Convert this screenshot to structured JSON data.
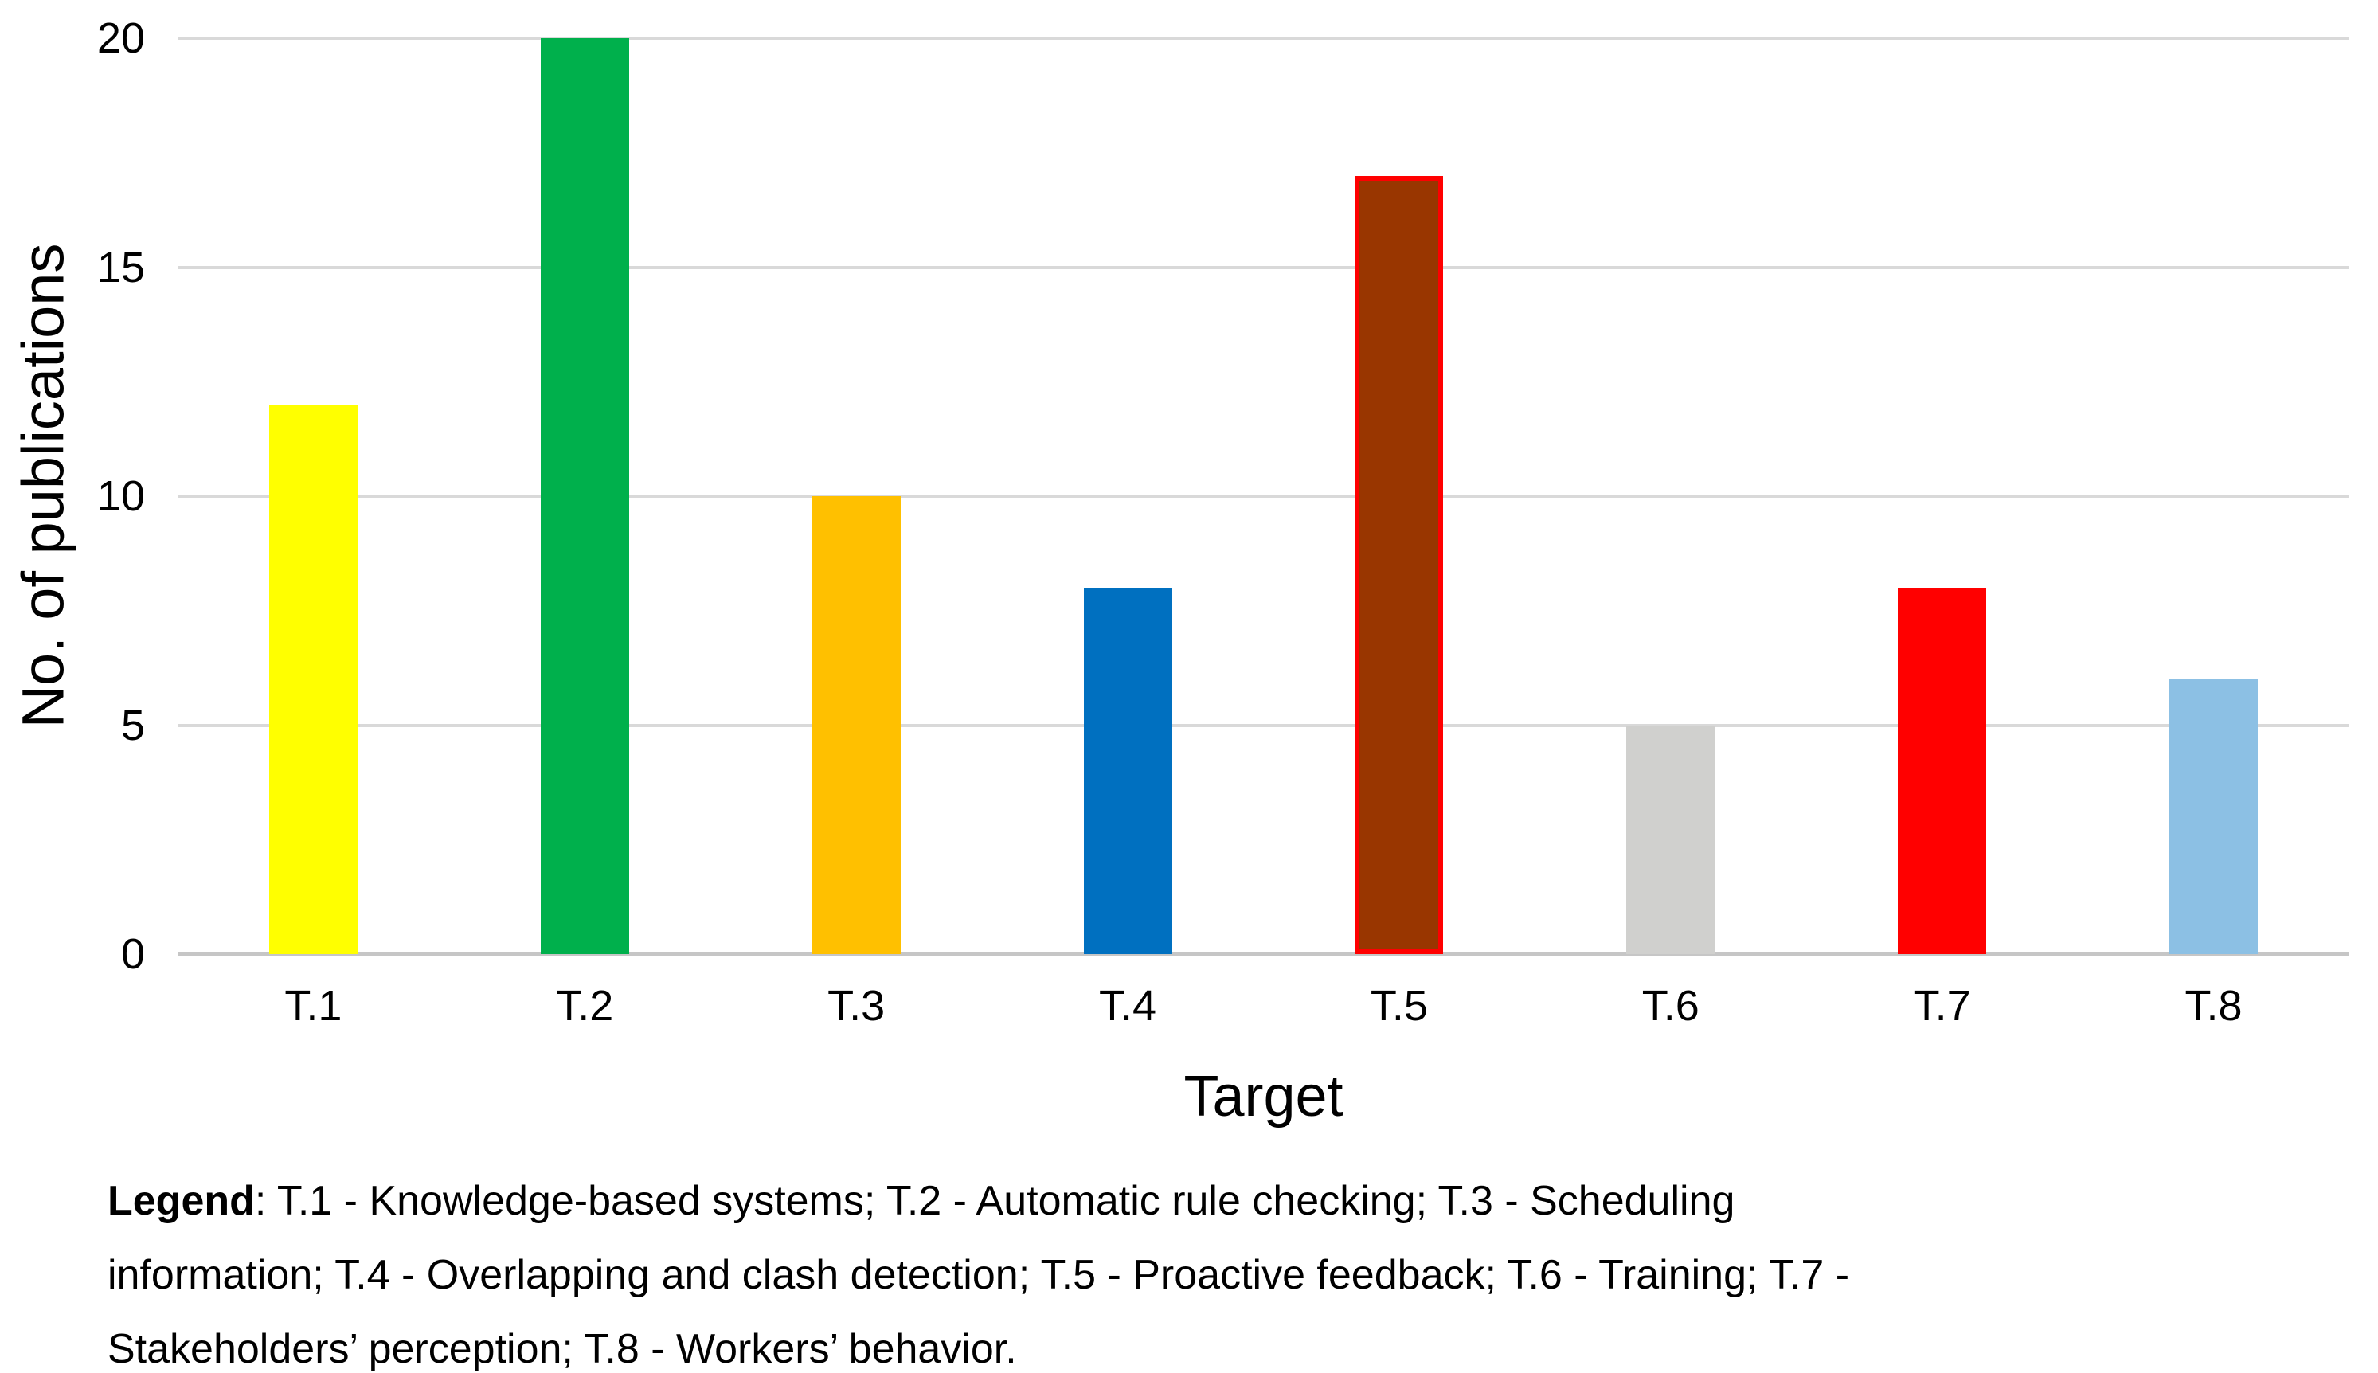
{
  "chart_data": {
    "type": "bar",
    "categories": [
      "T.1",
      "T.2",
      "T.3",
      "T.4",
      "T.5",
      "T.6",
      "T.7",
      "T.8"
    ],
    "values": [
      12,
      20,
      10,
      8,
      17,
      5,
      8,
      6
    ],
    "bar_colors": [
      "#FFFF00",
      "#00B04C",
      "#FFC000",
      "#0070C0",
      "#993600",
      "#D0D0CE",
      "#FF0000",
      "#8CC0E4"
    ],
    "bar_border_colors": [
      null,
      null,
      null,
      null,
      "#FF0000",
      null,
      null,
      null
    ],
    "title": "",
    "xlabel": "Target",
    "ylabel": "No. of publications",
    "ylim": [
      0,
      20
    ],
    "yticks": [
      0,
      5,
      10,
      15,
      20
    ],
    "grid": "horizontal",
    "gridline_color": "#D9D9D9",
    "axis_line_color": "#C6C6C6",
    "legend_position": "none"
  },
  "legend_note": {
    "title": "Legend",
    "line1_rest": ": T.1 - Knowledge-based systems; T.2 - Automatic rule checking; T.3 - Scheduling",
    "line2": "information; T.4 - Overlapping and clash detection; T.5 - Proactive feedback; T.6 - Training; T.7 -",
    "line3": "Stakeholders’ perception; T.8 - Workers’ behavior."
  }
}
